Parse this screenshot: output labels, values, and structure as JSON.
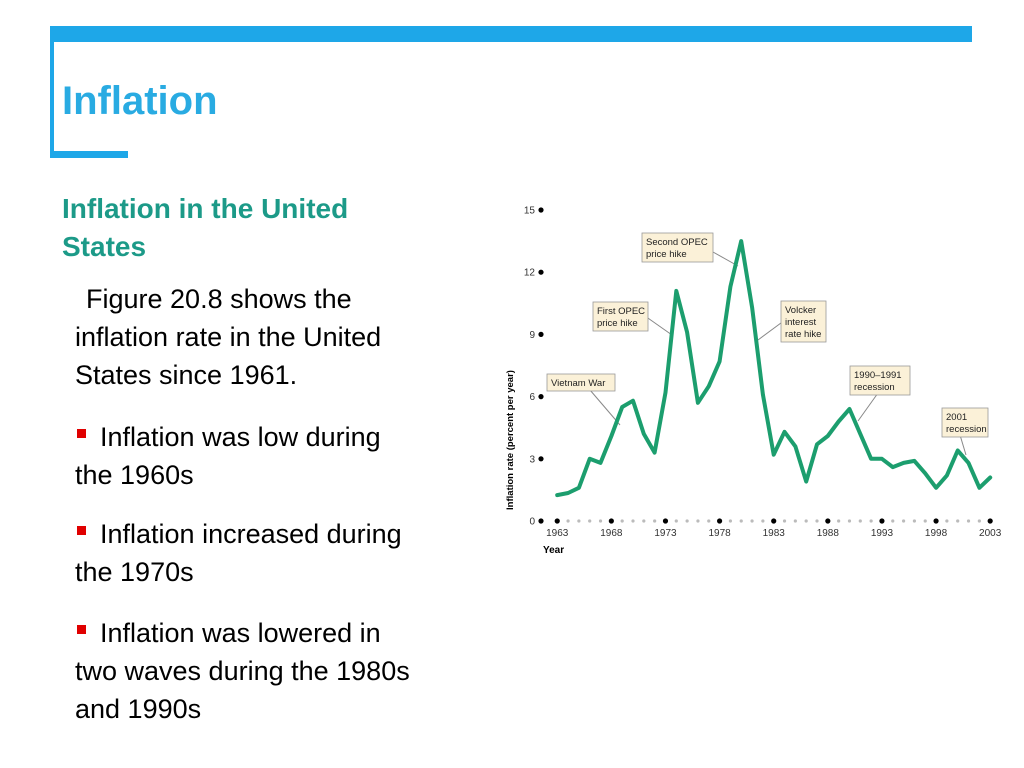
{
  "header": {
    "title": "Inflation"
  },
  "body": {
    "subtitle_lines": [
      "Inflation in the United",
      "States"
    ],
    "intro_lines": [
      "Figure 20.8 shows the",
      "inflation rate in the United",
      "States since 1961."
    ],
    "bullets": [
      [
        "Inflation was low during",
        "the 1960s"
      ],
      [
        "Inflation increased during",
        "the 1970s"
      ],
      [
        "Inflation was lowered in",
        "two waves during the 1980s",
        "and 1990s"
      ]
    ]
  },
  "chart_data": {
    "type": "line",
    "y_label": "Inflation rate (percent per year)",
    "x_label": "Year",
    "color": "#1c9e6e",
    "x": [
      1963,
      1964,
      1965,
      1966,
      1967,
      1968,
      1969,
      1970,
      1971,
      1972,
      1973,
      1974,
      1975,
      1976,
      1977,
      1978,
      1979,
      1980,
      1981,
      1982,
      1983,
      1984,
      1985,
      1986,
      1987,
      1988,
      1989,
      1990,
      1991,
      1992,
      1993,
      1994,
      1995,
      1996,
      1997,
      1998,
      1999,
      2000,
      2001,
      2002,
      2003
    ],
    "values": [
      1.25,
      1.35,
      1.6,
      3.0,
      2.8,
      4.1,
      5.5,
      5.8,
      4.2,
      3.3,
      6.2,
      11.1,
      9.1,
      5.7,
      6.5,
      7.7,
      11.3,
      13.5,
      10.3,
      6.1,
      3.2,
      4.3,
      3.6,
      1.9,
      3.7,
      4.1,
      4.8,
      5.4,
      4.2,
      3.0,
      3.0,
      2.6,
      2.8,
      2.9,
      2.3,
      1.6,
      2.2,
      3.4,
      2.8,
      1.6,
      2.1
    ],
    "xlim": [
      1961.5,
      2004
    ],
    "xticks": [
      1963,
      1968,
      1973,
      1978,
      1983,
      1988,
      1993,
      1998,
      2003
    ],
    "ylim": [
      0,
      15
    ],
    "yticks": [
      0,
      3,
      6,
      9,
      12,
      15
    ],
    "annotations": [
      {
        "lines": [
          "Vietnam War"
        ]
      },
      {
        "lines": [
          "First OPEC",
          "price hike"
        ]
      },
      {
        "lines": [
          "Second OPEC",
          "price hike"
        ]
      },
      {
        "lines": [
          "Volcker",
          "interest",
          "rate hike"
        ]
      },
      {
        "lines": [
          "1990–1991",
          "recession"
        ]
      },
      {
        "lines": [
          "2001",
          "recession"
        ]
      }
    ]
  }
}
